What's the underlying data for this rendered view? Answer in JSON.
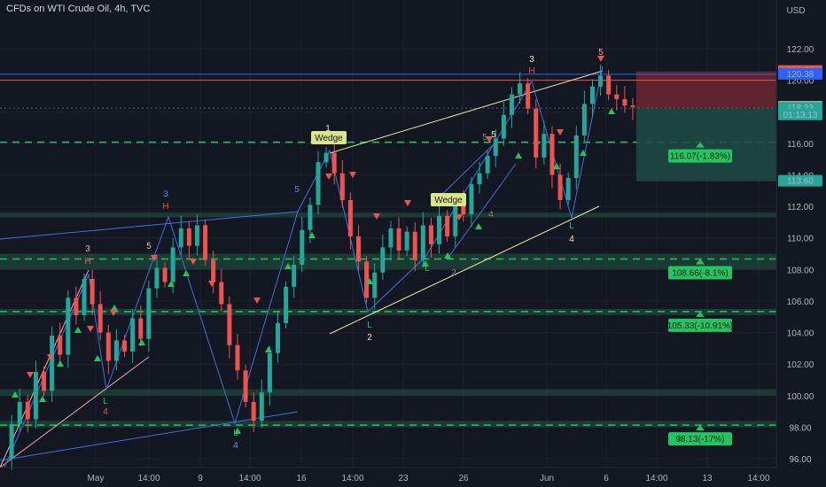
{
  "header": {
    "title": "CFDs on WTI Crude Oil, 4h, TVC",
    "currency": "USD"
  },
  "colors": {
    "bg": "#131722",
    "grid": "#1e222d",
    "up": "#26a69a",
    "down": "#ef5350",
    "green": "#22c55e",
    "zone": "#1e4a3a",
    "blue": "#3f6fe0",
    "yellow": "#f5e6a8",
    "pink": "#f4a7a0",
    "red": "#ef5350",
    "label_bg": "#d9e68a"
  },
  "chart_data": {
    "type": "candlestick",
    "ylim": [
      95.5,
      122.8
    ],
    "y_ticks": [
      "96.00",
      "98.00",
      "100.00",
      "102.00",
      "104.00",
      "106.00",
      "108.00",
      "110.00",
      "112.00",
      "114.00",
      "116.00",
      "118.00",
      "120.00",
      "122.00"
    ],
    "x_ticks": [
      "May",
      "14:00",
      "9",
      "14:00",
      "16",
      "14:00",
      "23",
      "26",
      "Jun",
      "6",
      "14:00",
      "13",
      "14:00"
    ],
    "horizontal_levels": [
      116.07,
      108.66,
      105.33,
      98.13
    ],
    "targets": [
      {
        "label": "116.07(-1.83%)",
        "price": 116.07
      },
      {
        "label": "108.66(-8.1%)",
        "price": 108.66
      },
      {
        "label": "105.33(-10.91%)",
        "price": 105.33
      },
      {
        "label": "98.13(-17%)",
        "price": 98.13
      }
    ],
    "zones": [
      [
        111.3,
        111.6
      ],
      [
        108.0,
        109.0
      ],
      [
        105.1,
        105.5
      ],
      [
        100.0,
        100.4
      ],
      [
        98.0,
        98.4
      ]
    ],
    "price_tags": [
      {
        "text": "120.56",
        "price": 120.56,
        "color": "#ef5350"
      },
      {
        "text": "120.38",
        "price": 120.38,
        "color": "#2962ff"
      },
      {
        "text": "118.28",
        "price": 118.28,
        "color": "#d9e68a"
      },
      {
        "text": "118.23",
        "price": 118.23,
        "color": "#26a69a"
      },
      {
        "text": "01:13:13",
        "price": 117.8,
        "color": "#26a69a"
      },
      {
        "text": "113.60",
        "price": 113.6,
        "color": "#26a69a"
      }
    ],
    "wave_labels": [
      "3",
      "H",
      "L",
      "4",
      "5",
      "3",
      "H",
      "5",
      "L",
      "4",
      "1",
      "5",
      "L",
      "2",
      "Wedge",
      "Wedge",
      "L",
      "2",
      "4",
      "3",
      "H",
      "5",
      "L",
      "4",
      "5"
    ],
    "close_path": [
      96.0,
      98.2,
      99.6,
      98.5,
      101.5,
      100.3,
      103.8,
      102.6,
      106.2,
      105.1,
      107.4,
      105.8,
      104.0,
      102.2,
      103.5,
      102.8,
      104.9,
      103.6,
      106.8,
      108.1,
      107.2,
      109.4,
      110.6,
      109.5,
      110.8,
      108.6,
      107.2,
      105.8,
      103.2,
      101.6,
      99.6,
      98.4,
      100.2,
      102.7,
      104.6,
      106.9,
      108.3,
      110.5,
      112.1,
      114.8,
      115.4,
      114.1,
      112.4,
      110.1,
      108.5,
      106.2,
      107.8,
      109.4,
      110.6,
      109.2,
      110.4,
      108.6,
      110.8,
      109.6,
      111.4,
      110.1,
      112.2,
      111.5,
      113.4,
      114.1,
      115.2,
      116.3,
      117.8,
      119.1,
      119.8,
      118.2,
      115.1,
      116.6,
      114.0,
      112.4,
      113.8,
      116.5,
      118.5,
      119.6,
      120.3,
      119.1,
      118.8,
      118.4,
      118.3
    ]
  }
}
